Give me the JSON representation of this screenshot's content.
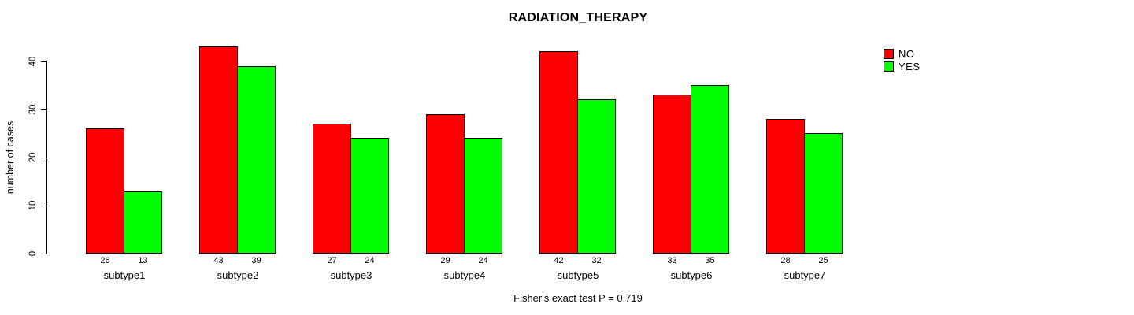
{
  "title": "RADIATION_THERAPY",
  "ylabel": "number of cases",
  "footer": "Fisher's exact test P = 0.719",
  "colors": {
    "no": "#FF0000",
    "yes": "#00FF00",
    "axis": "#000000",
    "background": "#FFFFFF"
  },
  "legend": {
    "position": "topright",
    "entries": [
      {
        "label": "NO",
        "color": "#FF0000"
      },
      {
        "label": "YES",
        "color": "#00FF00"
      }
    ]
  },
  "chart_data": {
    "type": "bar",
    "grouped": true,
    "title": "RADIATION_THERAPY",
    "xlabel": "",
    "ylabel": "number of cases",
    "categories": [
      "subtype1",
      "subtype2",
      "subtype3",
      "subtype4",
      "subtype5",
      "subtype6",
      "subtype7"
    ],
    "series": [
      {
        "name": "NO",
        "color": "#FF0000",
        "values": [
          26,
          43,
          27,
          29,
          42,
          33,
          28
        ]
      },
      {
        "name": "YES",
        "color": "#00FF00",
        "values": [
          13,
          39,
          24,
          24,
          32,
          35,
          25
        ]
      }
    ],
    "bar_value_labels": {
      "NO": [
        "26",
        "43",
        "27",
        "29",
        "42",
        "33",
        "28"
      ],
      "YES": [
        "13",
        "39",
        "24",
        "24",
        "32",
        "35",
        "25"
      ]
    },
    "yticks": [
      0,
      10,
      20,
      30,
      40
    ],
    "ylim": [
      0,
      45
    ],
    "grid": false,
    "legend_position": "topright",
    "annotation": "Fisher's exact test P = 0.719"
  }
}
